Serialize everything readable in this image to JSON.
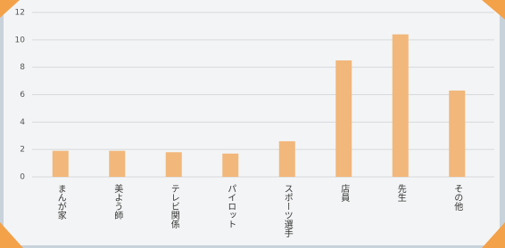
{
  "chart_data": {
    "type": "bar",
    "categories": [
      "まんが家",
      "美よう師",
      "テレビ関係",
      "パイロット",
      "スポーツ選手",
      "店員",
      "先生",
      "その他"
    ],
    "values": [
      1.9,
      1.9,
      1.8,
      1.7,
      2.6,
      8.5,
      10.4,
      6.3
    ],
    "color": "#f2b77a",
    "ylim": [
      0,
      12
    ],
    "yticks": [
      0,
      2,
      4,
      6,
      8,
      10,
      12
    ],
    "grid": true
  }
}
